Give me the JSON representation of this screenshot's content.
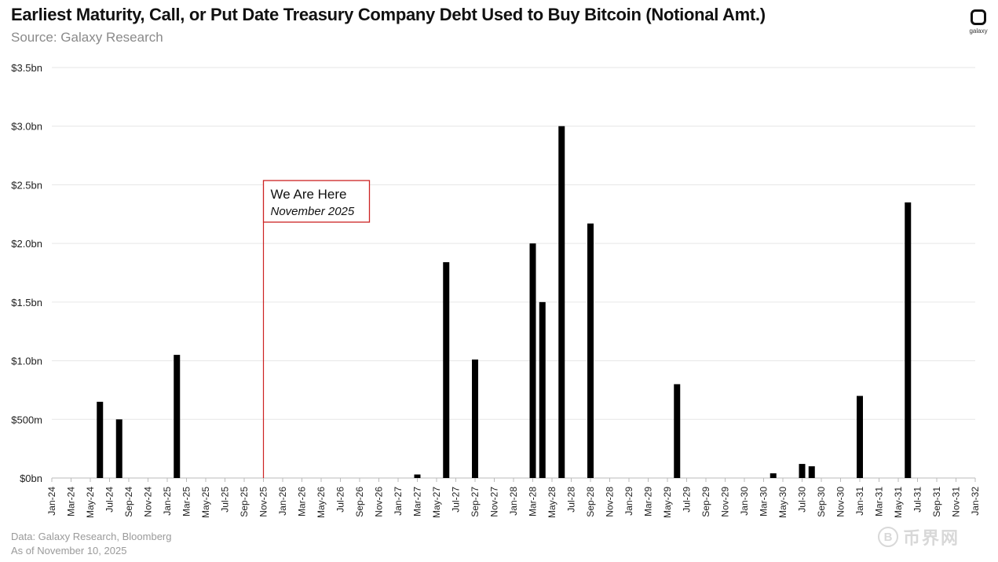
{
  "header": {
    "title": "Earliest Maturity, Call, or Put Date Treasury Company Debt Used to Buy Bitcoin (Notional Amt.)",
    "subtitle": "Source: Galaxy Research",
    "logo_text": "galaxy"
  },
  "footer": {
    "line1": "Data: Galaxy Research, Bloomberg",
    "line2": "As of November 10, 2025"
  },
  "watermark": {
    "coin": "B",
    "text": "币界网"
  },
  "annotation": {
    "title": "We Are Here",
    "subtitle": "November 2025",
    "at_category": "Nov-25",
    "color": "#cc2222"
  },
  "colors": {
    "bar": "#000000",
    "grid": "#e6e6e6",
    "axis": "#bbbbbb",
    "tick_text": "#222222"
  },
  "chart_data": {
    "type": "bar",
    "title": "Earliest Maturity, Call, or Put Date Treasury Company Debt Used to Buy Bitcoin (Notional Amt.)",
    "xlabel": "",
    "ylabel": "",
    "ylim": [
      0,
      3.5
    ],
    "grid": true,
    "y_ticks": [
      {
        "value": 0,
        "label": "$0bn"
      },
      {
        "value": 0.5,
        "label": "$500m"
      },
      {
        "value": 1.0,
        "label": "$1.0bn"
      },
      {
        "value": 1.5,
        "label": "$1.5bn"
      },
      {
        "value": 2.0,
        "label": "$2.0bn"
      },
      {
        "value": 2.5,
        "label": "$2.5bn"
      },
      {
        "value": 3.0,
        "label": "$3.0bn"
      },
      {
        "value": 3.5,
        "label": "$3.5bn"
      }
    ],
    "months": [
      "Jan-24",
      "Feb-24",
      "Mar-24",
      "Apr-24",
      "May-24",
      "Jun-24",
      "Jul-24",
      "Aug-24",
      "Sep-24",
      "Oct-24",
      "Nov-24",
      "Dec-24",
      "Jan-25",
      "Feb-25",
      "Mar-25",
      "Apr-25",
      "May-25",
      "Jun-25",
      "Jul-25",
      "Aug-25",
      "Sep-25",
      "Oct-25",
      "Nov-25",
      "Dec-25",
      "Jan-26",
      "Feb-26",
      "Mar-26",
      "Apr-26",
      "May-26",
      "Jun-26",
      "Jul-26",
      "Aug-26",
      "Sep-26",
      "Oct-26",
      "Nov-26",
      "Dec-26",
      "Jan-27",
      "Feb-27",
      "Mar-27",
      "Apr-27",
      "May-27",
      "Jun-27",
      "Jul-27",
      "Aug-27",
      "Sep-27",
      "Oct-27",
      "Nov-27",
      "Dec-27",
      "Jan-28",
      "Feb-28",
      "Mar-28",
      "Apr-28",
      "May-28",
      "Jun-28",
      "Jul-28",
      "Aug-28",
      "Sep-28",
      "Oct-28",
      "Nov-28",
      "Dec-28",
      "Jan-29",
      "Feb-29",
      "Mar-29",
      "Apr-29",
      "May-29",
      "Jun-29",
      "Jul-29",
      "Aug-29",
      "Sep-29",
      "Oct-29",
      "Nov-29",
      "Dec-29",
      "Jan-30",
      "Feb-30",
      "Mar-30",
      "Apr-30",
      "May-30",
      "Jun-30",
      "Jul-30",
      "Aug-30",
      "Sep-30",
      "Oct-30",
      "Nov-30",
      "Dec-30",
      "Jan-31",
      "Feb-31",
      "Mar-31",
      "Apr-31",
      "May-31",
      "Jun-31",
      "Jul-31",
      "Aug-31",
      "Sep-31",
      "Oct-31",
      "Nov-31",
      "Dec-31",
      "Jan-32"
    ],
    "tick_labels": [
      "Jan-24",
      "Mar-24",
      "May-24",
      "Jul-24",
      "Sep-24",
      "Nov-24",
      "Jan-25",
      "Mar-25",
      "May-25",
      "Jul-25",
      "Sep-25",
      "Nov-25",
      "Jan-26",
      "Mar-26",
      "May-26",
      "Jul-26",
      "Sep-26",
      "Nov-26",
      "Jan-27",
      "Mar-27",
      "May-27",
      "Jul-27",
      "Sep-27",
      "Nov-27",
      "Jan-28",
      "Mar-28",
      "May-28",
      "Jul-28",
      "Sep-28",
      "Nov-28",
      "Jan-29",
      "Mar-29",
      "May-29",
      "Jul-29",
      "Sep-29",
      "Nov-29",
      "Jan-30",
      "Mar-30",
      "May-30",
      "Jul-30",
      "Sep-30",
      "Nov-30",
      "Jan-31",
      "Mar-31",
      "May-31",
      "Jul-31",
      "Sep-31",
      "Nov-31",
      "Jan-32"
    ],
    "bars": [
      {
        "month": "Jun-24",
        "value": 0.65
      },
      {
        "month": "Aug-24",
        "value": 0.5
      },
      {
        "month": "Feb-25",
        "value": 1.05
      },
      {
        "month": "Mar-27",
        "value": 0.03
      },
      {
        "month": "Jun-27",
        "value": 1.84
      },
      {
        "month": "Sep-27",
        "value": 1.01
      },
      {
        "month": "Mar-28",
        "value": 2.0
      },
      {
        "month": "Apr-28",
        "value": 1.5
      },
      {
        "month": "Jun-28",
        "value": 3.0
      },
      {
        "month": "Sep-28",
        "value": 2.17
      },
      {
        "month": "Jun-29",
        "value": 0.8
      },
      {
        "month": "Apr-30",
        "value": 0.04
      },
      {
        "month": "Jul-30",
        "value": 0.12
      },
      {
        "month": "Aug-30",
        "value": 0.1
      },
      {
        "month": "Jan-31",
        "value": 0.7
      },
      {
        "month": "Jun-31",
        "value": 2.35
      }
    ]
  }
}
